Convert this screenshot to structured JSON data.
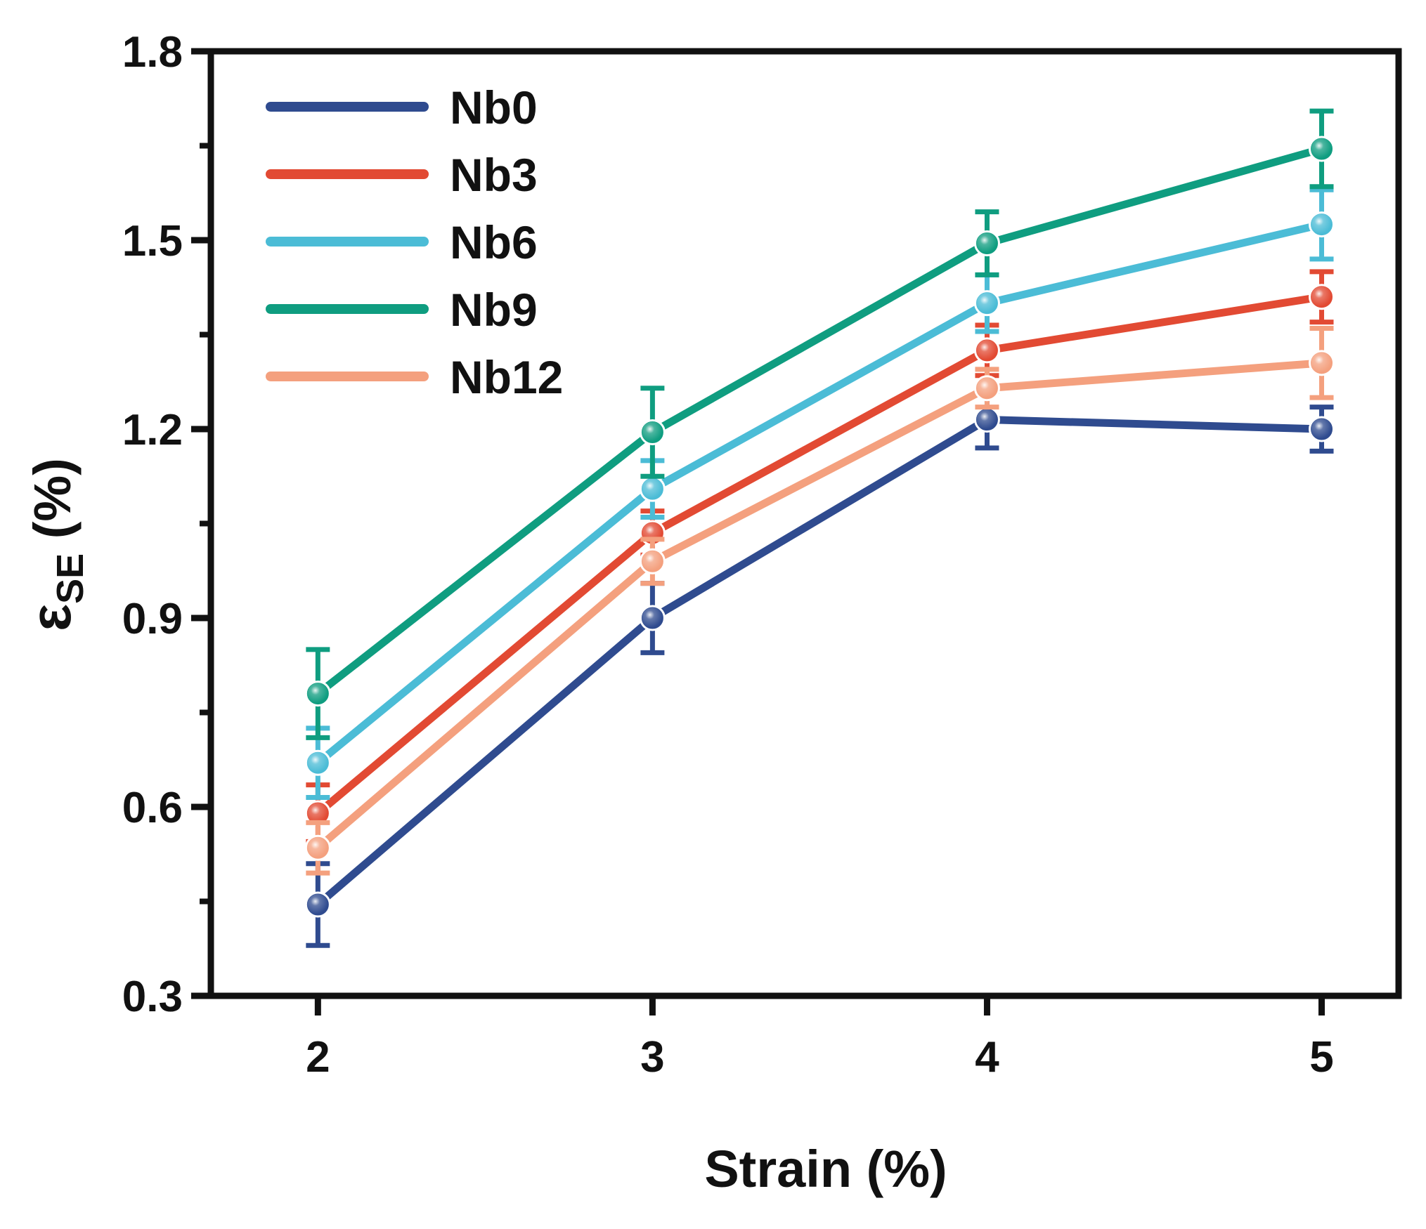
{
  "chart_data": {
    "type": "line",
    "title": "",
    "xlabel": "Strain (%)",
    "ylabel_main": "ε",
    "ylabel_sub": "SE",
    "ylabel_unit": " (%)",
    "x": [
      2,
      3,
      4,
      5
    ],
    "x_tick_labels": [
      "2",
      "3",
      "4",
      "5"
    ],
    "xlim": [
      1.68,
      5.23
    ],
    "ylim": [
      0.3,
      1.8
    ],
    "y_ticks": [
      0.3,
      0.6,
      0.9,
      1.2,
      1.5,
      1.8
    ],
    "y_tick_labels": [
      "0.3",
      "0.6",
      "0.9",
      "1.2",
      "1.5",
      "1.8"
    ],
    "y_minor_ticks": [
      0.45,
      0.75,
      1.05,
      1.35,
      1.65
    ],
    "legend_position": "top-left",
    "grid": false,
    "series": [
      {
        "name": "Nb0",
        "color": "#2f4b8f",
        "values": [
          0.445,
          0.9,
          1.215,
          1.2
        ],
        "errors": [
          0.065,
          0.055,
          0.045,
          0.035
        ]
      },
      {
        "name": "Nb3",
        "color": "#e24a33",
        "values": [
          0.59,
          1.035,
          1.325,
          1.41
        ],
        "errors": [
          0.045,
          0.035,
          0.04,
          0.04
        ]
      },
      {
        "name": "Nb6",
        "color": "#4bbcd6",
        "values": [
          0.67,
          1.105,
          1.4,
          1.525
        ],
        "errors": [
          0.055,
          0.045,
          0.045,
          0.055
        ]
      },
      {
        "name": "Nb9",
        "color": "#0f9d80",
        "values": [
          0.78,
          1.195,
          1.495,
          1.645
        ],
        "errors": [
          0.07,
          0.07,
          0.05,
          0.06
        ]
      },
      {
        "name": "Nb12",
        "color": "#f4a07e",
        "values": [
          0.535,
          0.99,
          1.265,
          1.305
        ],
        "errors": [
          0.04,
          0.035,
          0.03,
          0.055
        ]
      }
    ]
  }
}
